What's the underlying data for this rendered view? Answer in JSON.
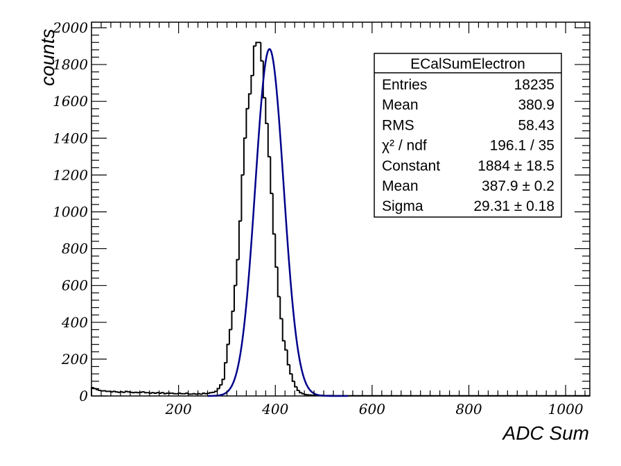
{
  "chart_data": {
    "type": "histogram",
    "xlabel": "ADC Sum",
    "ylabel": "counts",
    "xlim": [
      20,
      1050
    ],
    "ylim": [
      0,
      2030
    ],
    "x_ticks": [
      200,
      400,
      600,
      800,
      1000
    ],
    "y_ticks": [
      0,
      200,
      400,
      600,
      800,
      1000,
      1200,
      1400,
      1600,
      1800,
      2000
    ],
    "bin_width": 5,
    "histogram": {
      "name": "ECalSumElectron",
      "x_start": 20,
      "counts": [
        45,
        40,
        35,
        30,
        28,
        28,
        25,
        25,
        22,
        25,
        22,
        20,
        22,
        20,
        25,
        22,
        20,
        18,
        20,
        18,
        20,
        22,
        18,
        18,
        15,
        18,
        15,
        18,
        15,
        18,
        12,
        15,
        15,
        15,
        12,
        12,
        15,
        12,
        12,
        15,
        10,
        10,
        12,
        10,
        12,
        10,
        15,
        12,
        15,
        18,
        20,
        25,
        40,
        60,
        90,
        180,
        280,
        360,
        460,
        600,
        740,
        950,
        1200,
        1400,
        1560,
        1640,
        1740,
        1900,
        1920,
        1920,
        1820,
        1620,
        1480,
        1300,
        1100,
        880,
        700,
        540,
        420,
        300,
        250,
        170,
        120,
        80,
        50,
        30,
        18,
        12,
        8,
        6,
        5,
        4,
        4,
        3,
        3,
        3,
        2,
        2,
        2,
        2,
        1,
        1,
        1,
        1,
        1,
        1,
        1,
        1,
        1,
        1,
        1,
        1,
        1,
        1,
        1,
        1,
        1,
        1,
        1,
        1,
        1,
        1,
        1,
        1,
        1,
        1,
        1,
        1,
        1,
        1,
        1,
        1,
        1,
        1,
        1,
        1,
        1,
        1,
        1,
        1,
        1,
        1,
        1,
        1,
        1,
        1,
        1,
        1,
        1,
        1,
        1,
        1,
        1,
        1,
        1,
        1,
        1,
        1,
        1,
        1,
        1,
        1,
        1,
        1,
        1,
        1,
        1,
        1,
        1,
        1,
        1,
        1,
        1,
        1,
        1,
        1,
        1,
        1,
        1,
        1,
        1,
        1,
        1,
        1,
        1,
        1,
        1,
        1,
        1,
        1,
        1,
        1,
        1,
        1,
        1,
        1,
        1,
        1,
        1,
        1,
        1,
        1,
        1,
        1,
        1,
        1,
        1,
        1,
        1,
        1,
        1,
        1,
        1,
        1,
        1,
        1,
        1,
        1,
        1,
        1,
        1,
        1,
        1,
        1,
        1,
        1,
        1,
        1
      ]
    },
    "fit": {
      "function": "gaus",
      "constant": 1884,
      "mean": 387.9,
      "sigma": 29.31,
      "range": [
        260,
        550
      ],
      "color": "#00008b"
    },
    "stats_box": {
      "title": "ECalSumElectron",
      "rows": [
        {
          "label": "Entries",
          "value": "18235"
        },
        {
          "label": "Mean",
          "value": "380.9"
        },
        {
          "label": "RMS",
          "value": "58.43"
        },
        {
          "label": "χ² / ndf",
          "value": "196.1 / 35"
        },
        {
          "label": "Constant",
          "value": "1884 ± 18.5"
        },
        {
          "label": "Mean",
          "value": "387.9 ± 0.2"
        },
        {
          "label": "Sigma",
          "value": "29.31 ± 0.18"
        }
      ]
    }
  }
}
